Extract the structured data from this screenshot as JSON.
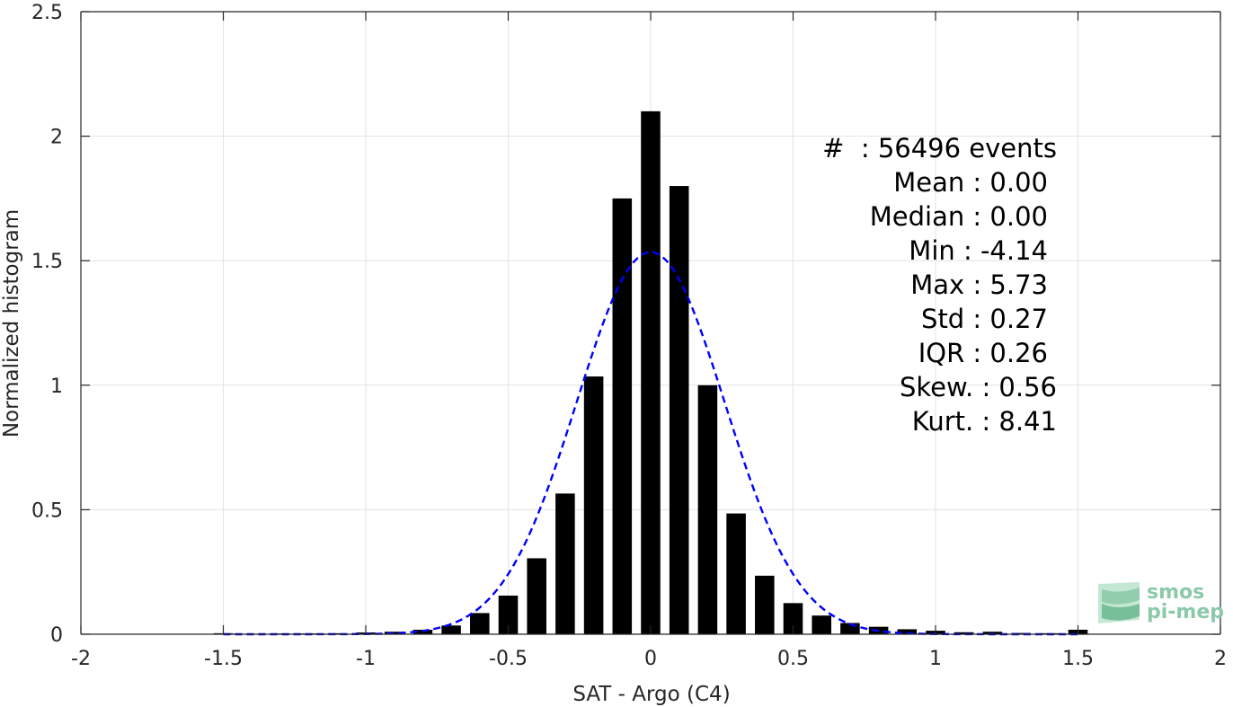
{
  "chart_data": {
    "type": "bar",
    "xlabel": "SAT - Argo (C4)",
    "ylabel": "Normalized histogram",
    "xlim": [
      -2,
      2
    ],
    "ylim": [
      0,
      2.5
    ],
    "xticks": [
      "-2",
      "-1.5",
      "-1",
      "-0.5",
      "0",
      "0.5",
      "1",
      "1.5",
      "2"
    ],
    "yticks": [
      "0",
      "0.5",
      "1",
      "1.5",
      "2",
      "2.5"
    ],
    "grid": true,
    "bar_color": "#000000",
    "bin_width": 0.1,
    "bins": [
      {
        "x": -1.5,
        "y": 0.004
      },
      {
        "x": -1.4,
        "y": 0.002
      },
      {
        "x": -1.3,
        "y": 0.003
      },
      {
        "x": -1.2,
        "y": 0.003
      },
      {
        "x": -1.1,
        "y": 0.004
      },
      {
        "x": -1.0,
        "y": 0.007
      },
      {
        "x": -0.9,
        "y": 0.01
      },
      {
        "x": -0.8,
        "y": 0.018
      },
      {
        "x": -0.7,
        "y": 0.035
      },
      {
        "x": -0.6,
        "y": 0.085
      },
      {
        "x": -0.5,
        "y": 0.155
      },
      {
        "x": -0.4,
        "y": 0.305
      },
      {
        "x": -0.3,
        "y": 0.565
      },
      {
        "x": -0.2,
        "y": 1.035
      },
      {
        "x": -0.1,
        "y": 1.75
      },
      {
        "x": 0.0,
        "y": 2.1
      },
      {
        "x": 0.1,
        "y": 1.8
      },
      {
        "x": 0.2,
        "y": 1.0
      },
      {
        "x": 0.3,
        "y": 0.485
      },
      {
        "x": 0.4,
        "y": 0.235
      },
      {
        "x": 0.5,
        "y": 0.125
      },
      {
        "x": 0.6,
        "y": 0.075
      },
      {
        "x": 0.7,
        "y": 0.045
      },
      {
        "x": 0.8,
        "y": 0.03
      },
      {
        "x": 0.9,
        "y": 0.02
      },
      {
        "x": 1.0,
        "y": 0.014
      },
      {
        "x": 1.1,
        "y": 0.008
      },
      {
        "x": 1.2,
        "y": 0.01
      },
      {
        "x": 1.3,
        "y": 0.005
      },
      {
        "x": 1.4,
        "y": 0.004
      },
      {
        "x": 1.5,
        "y": 0.018
      }
    ],
    "fit_curve": {
      "style": "dashed",
      "color": "#0000ff",
      "distribution": "gaussian",
      "mean": 0.0,
      "std": 0.26,
      "x_range": [
        -1.5,
        1.5
      ]
    }
  },
  "stats_lines": [
    "#  : 56496 events",
    "Mean : 0.00",
    "Median : 0.00",
    "Min : -4.14",
    "Max : 5.73",
    "Std : 0.27",
    "IQR : 0.26",
    "Skew. : 0.56",
    "Kurt. : 8.41"
  ],
  "logo": {
    "line1": "smos",
    "line2": "pi-mep"
  }
}
